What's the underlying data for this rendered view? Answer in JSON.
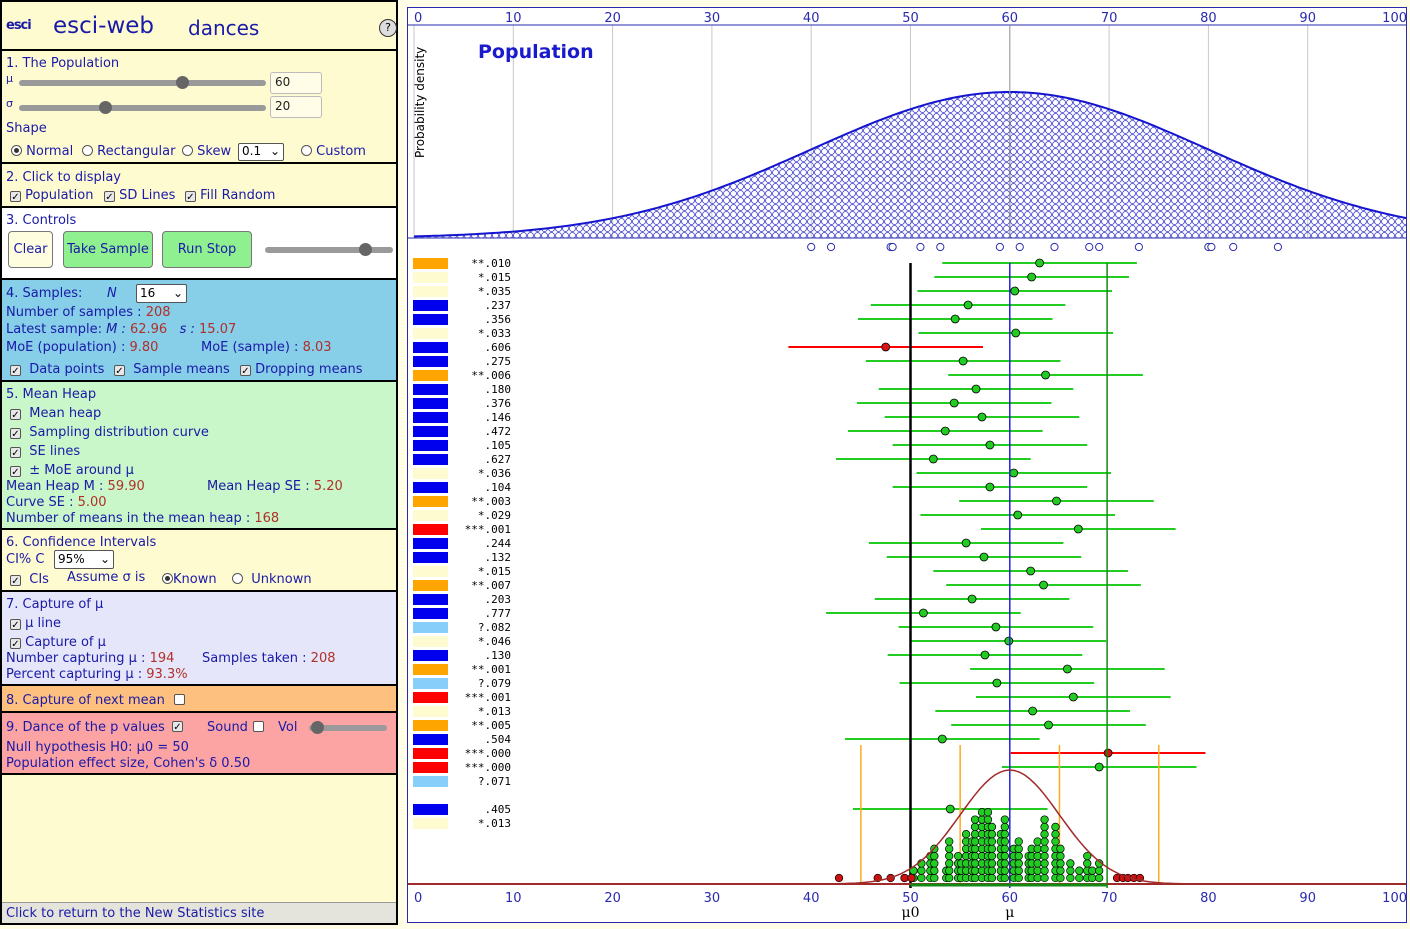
{
  "header": {
    "logo": "esci",
    "app_name": "esci-web",
    "page_name": "dances",
    "help": "?"
  },
  "population": {
    "title": "1. The Population",
    "mu_label": "μ",
    "mu_value": "60",
    "sigma_label": "σ",
    "sigma_value": "20",
    "mu_slider_fraction": 0.66,
    "sigma_slider_fraction": 0.35,
    "shape_label": "Shape",
    "shapes": [
      "Normal",
      "Rectangular",
      "Skew",
      "Custom"
    ],
    "selected_shape": "Normal",
    "skew_value": "0.1"
  },
  "display": {
    "title": "2. Click to display",
    "population": "Population",
    "sd_lines": "SD Lines",
    "fill_random": "Fill Random"
  },
  "controls": {
    "title": "3. Controls",
    "clear": "Clear",
    "take_sample": "Take Sample",
    "run_stop": "Run Stop",
    "speed_fraction": 0.78
  },
  "samples": {
    "title": "4. Samples:",
    "n_label": "N",
    "n_value": "16",
    "count_label": "Number of samples :",
    "count": "208",
    "latest_label": "Latest sample:",
    "m_label": "M :",
    "m_value": "62.96",
    "s_label": "s :",
    "s_value": "15.07",
    "moe_pop_label": "MoE (population) :",
    "moe_pop": "9.80",
    "moe_samp_label": "MoE (sample) :",
    "moe_samp": "8.03",
    "data_points": "Data points",
    "sample_means": "Sample means",
    "dropping_means": "Dropping means"
  },
  "mean_heap": {
    "title": "5. Mean Heap",
    "mean_heap": "Mean heap",
    "sampling_curve": "Sampling distribution curve",
    "se_lines": "SE lines",
    "moe_around": "± MoE around μ",
    "m_label": "Mean Heap M :",
    "m_value": "59.90",
    "se_label": "Mean Heap SE :",
    "se_value": "5.20",
    "curve_se_label": "Curve SE :",
    "curve_se_value": "5.00",
    "count_label": "Number of means in the mean heap :",
    "count_value": "168"
  },
  "ci": {
    "title": "6. Confidence Intervals",
    "ci_label": "CI% C",
    "ci_value": "95%",
    "cis": "CIs",
    "assume": "Assume σ is",
    "known": "Known",
    "unknown": "Unknown"
  },
  "capture": {
    "title": "7. Capture of μ",
    "mu_line": "μ line",
    "capture_of_mu": "Capture of μ",
    "capturing_label": "Number capturing μ :",
    "capturing": "194",
    "taken_label": "Samples taken :",
    "taken": "208",
    "percent_label": "Percent capturing μ :",
    "percent": "93.3%"
  },
  "next_mean": {
    "title": "8. Capture of next mean"
  },
  "dance": {
    "title": "9. Dance of the p values",
    "sound": "Sound",
    "vol": "Vol",
    "h0": "Null hypothesis H0: μ0 = 50",
    "effect": "Population effect size, Cohen's δ 0.50",
    "vol_fraction": 0.1
  },
  "footer": {
    "link": "Click to return to the New Statistics site"
  },
  "chart_data": {
    "type": "scatter",
    "population_title": "Population",
    "ylabel": "Probability density",
    "x_ticks": [
      "0",
      "10",
      "20",
      "30",
      "40",
      "50",
      "60",
      "70",
      "80",
      "90",
      "100"
    ],
    "xlim": [
      0,
      100
    ],
    "mu": 60,
    "sigma": 20,
    "mu0": 50,
    "mu_label": "μ",
    "mu0_label": "μ0",
    "sample_dots": [
      40,
      42,
      48,
      48.2,
      51,
      53,
      59,
      61,
      64.5,
      68,
      69,
      73,
      80,
      80.3,
      82.5,
      87
    ],
    "colors": {
      "orange": "#ffa500",
      "blue": "#0000ee",
      "light": "#fffbd0",
      "red": "#ff0000",
      "lightblue": "#87cefa"
    },
    "rows": [
      {
        "color": "orange",
        "p": "**.010",
        "m": 63,
        "ci": "g"
      },
      {
        "color": "light",
        "p": "*.015",
        "m": 62.2,
        "ci": "g"
      },
      {
        "color": "light",
        "p": "*.035",
        "m": 60.5,
        "ci": "g"
      },
      {
        "color": "blue",
        "p": ".237",
        "m": 55.8,
        "ci": "g"
      },
      {
        "color": "blue",
        "p": ".356",
        "m": 54.5,
        "ci": "g"
      },
      {
        "color": "light",
        "p": "*.033",
        "m": 60.6,
        "ci": "g"
      },
      {
        "color": "blue",
        "p": ".606",
        "m": 47.5,
        "ci": "r"
      },
      {
        "color": "blue",
        "p": ".275",
        "m": 55.3,
        "ci": "g"
      },
      {
        "color": "orange",
        "p": "**.006",
        "m": 63.6,
        "ci": "g"
      },
      {
        "color": "blue",
        "p": ".180",
        "m": 56.6,
        "ci": "g"
      },
      {
        "color": "blue",
        "p": ".376",
        "m": 54.4,
        "ci": "g"
      },
      {
        "color": "blue",
        "p": ".146",
        "m": 57.2,
        "ci": "g"
      },
      {
        "color": "blue",
        "p": ".472",
        "m": 53.5,
        "ci": "g"
      },
      {
        "color": "blue",
        "p": ".105",
        "m": 58,
        "ci": "g"
      },
      {
        "color": "blue",
        "p": ".627",
        "m": 52.3,
        "ci": "g"
      },
      {
        "color": "light",
        "p": "*.036",
        "m": 60.4,
        "ci": "g"
      },
      {
        "color": "blue",
        "p": ".104",
        "m": 58,
        "ci": "g"
      },
      {
        "color": "orange",
        "p": "**.003",
        "m": 64.7,
        "ci": "g"
      },
      {
        "color": "light",
        "p": "*.029",
        "m": 60.8,
        "ci": "g"
      },
      {
        "color": "red",
        "p": "***.001",
        "m": 66.9,
        "ci": "g"
      },
      {
        "color": "blue",
        "p": ".244",
        "m": 55.6,
        "ci": "g"
      },
      {
        "color": "blue",
        "p": ".132",
        "m": 57.4,
        "ci": "g"
      },
      {
        "color": "light",
        "p": "*.015",
        "m": 62.1,
        "ci": "g"
      },
      {
        "color": "orange",
        "p": "**.007",
        "m": 63.4,
        "ci": "g"
      },
      {
        "color": "blue",
        "p": ".203",
        "m": 56.2,
        "ci": "g"
      },
      {
        "color": "blue",
        "p": ".777",
        "m": 51.3,
        "ci": "g"
      },
      {
        "color": "lightblue",
        "p": "?.082",
        "m": 58.6,
        "ci": "g"
      },
      {
        "color": "light",
        "p": "*.046",
        "m": 59.9,
        "ci": "g"
      },
      {
        "color": "blue",
        "p": ".130",
        "m": 57.5,
        "ci": "g"
      },
      {
        "color": "orange",
        "p": "**.001",
        "m": 65.8,
        "ci": "g"
      },
      {
        "color": "lightblue",
        "p": "?.079",
        "m": 58.7,
        "ci": "g"
      },
      {
        "color": "red",
        "p": "***.001",
        "m": 66.4,
        "ci": "g"
      },
      {
        "color": "light",
        "p": "*.013",
        "m": 62.3,
        "ci": "g"
      },
      {
        "color": "orange",
        "p": "**.005",
        "m": 63.9,
        "ci": "g"
      },
      {
        "color": "blue",
        "p": ".504",
        "m": 53.2,
        "ci": "g"
      },
      {
        "color": "red",
        "p": "***.000",
        "m": 69.9,
        "ci": "r"
      },
      {
        "color": "red",
        "p": "***.000",
        "m": 69,
        "ci": "g"
      },
      {
        "color": "lightblue",
        "p": "?.071",
        "m": null,
        "ci": "g"
      },
      {
        "color": "none",
        "p": "",
        "m": null,
        "ci": "none"
      },
      {
        "color": "blue",
        "p": ".405",
        "m": 54,
        "ci": "g"
      },
      {
        "color": "light",
        "p": "*.013",
        "m": null,
        "ci": "g"
      }
    ],
    "heap_columns": [
      {
        "x": 49.4,
        "n": 1
      },
      {
        "x": 50.3,
        "n": 2
      },
      {
        "x": 51.1,
        "n": 3
      },
      {
        "x": 52,
        "n": 4
      },
      {
        "x": 52.4,
        "n": 5
      },
      {
        "x": 53.6,
        "n": 2
      },
      {
        "x": 53.9,
        "n": 6
      },
      {
        "x": 54.8,
        "n": 4
      },
      {
        "x": 55.1,
        "n": 3
      },
      {
        "x": 55.6,
        "n": 7
      },
      {
        "x": 56.2,
        "n": 6
      },
      {
        "x": 56.5,
        "n": 9
      },
      {
        "x": 57.2,
        "n": 10
      },
      {
        "x": 57.8,
        "n": 10
      },
      {
        "x": 58.2,
        "n": 8
      },
      {
        "x": 59.1,
        "n": 7
      },
      {
        "x": 59.5,
        "n": 9
      },
      {
        "x": 60.4,
        "n": 5
      },
      {
        "x": 60.9,
        "n": 6
      },
      {
        "x": 61.9,
        "n": 4
      },
      {
        "x": 62.2,
        "n": 5
      },
      {
        "x": 62.8,
        "n": 6
      },
      {
        "x": 63.5,
        "n": 9
      },
      {
        "x": 64.6,
        "n": 8
      },
      {
        "x": 65.1,
        "n": 5
      },
      {
        "x": 66.1,
        "n": 3
      },
      {
        "x": 67,
        "n": 2
      },
      {
        "x": 67.8,
        "n": 4
      },
      {
        "x": 68.3,
        "n": 2
      },
      {
        "x": 69,
        "n": 3
      }
    ],
    "heap_red": [
      42.8,
      46.7,
      48,
      49.4,
      50.1,
      70.8,
      71.4,
      71.9,
      72.5,
      73.1
    ],
    "orange_lines": [
      45,
      55,
      65,
      75
    ]
  }
}
